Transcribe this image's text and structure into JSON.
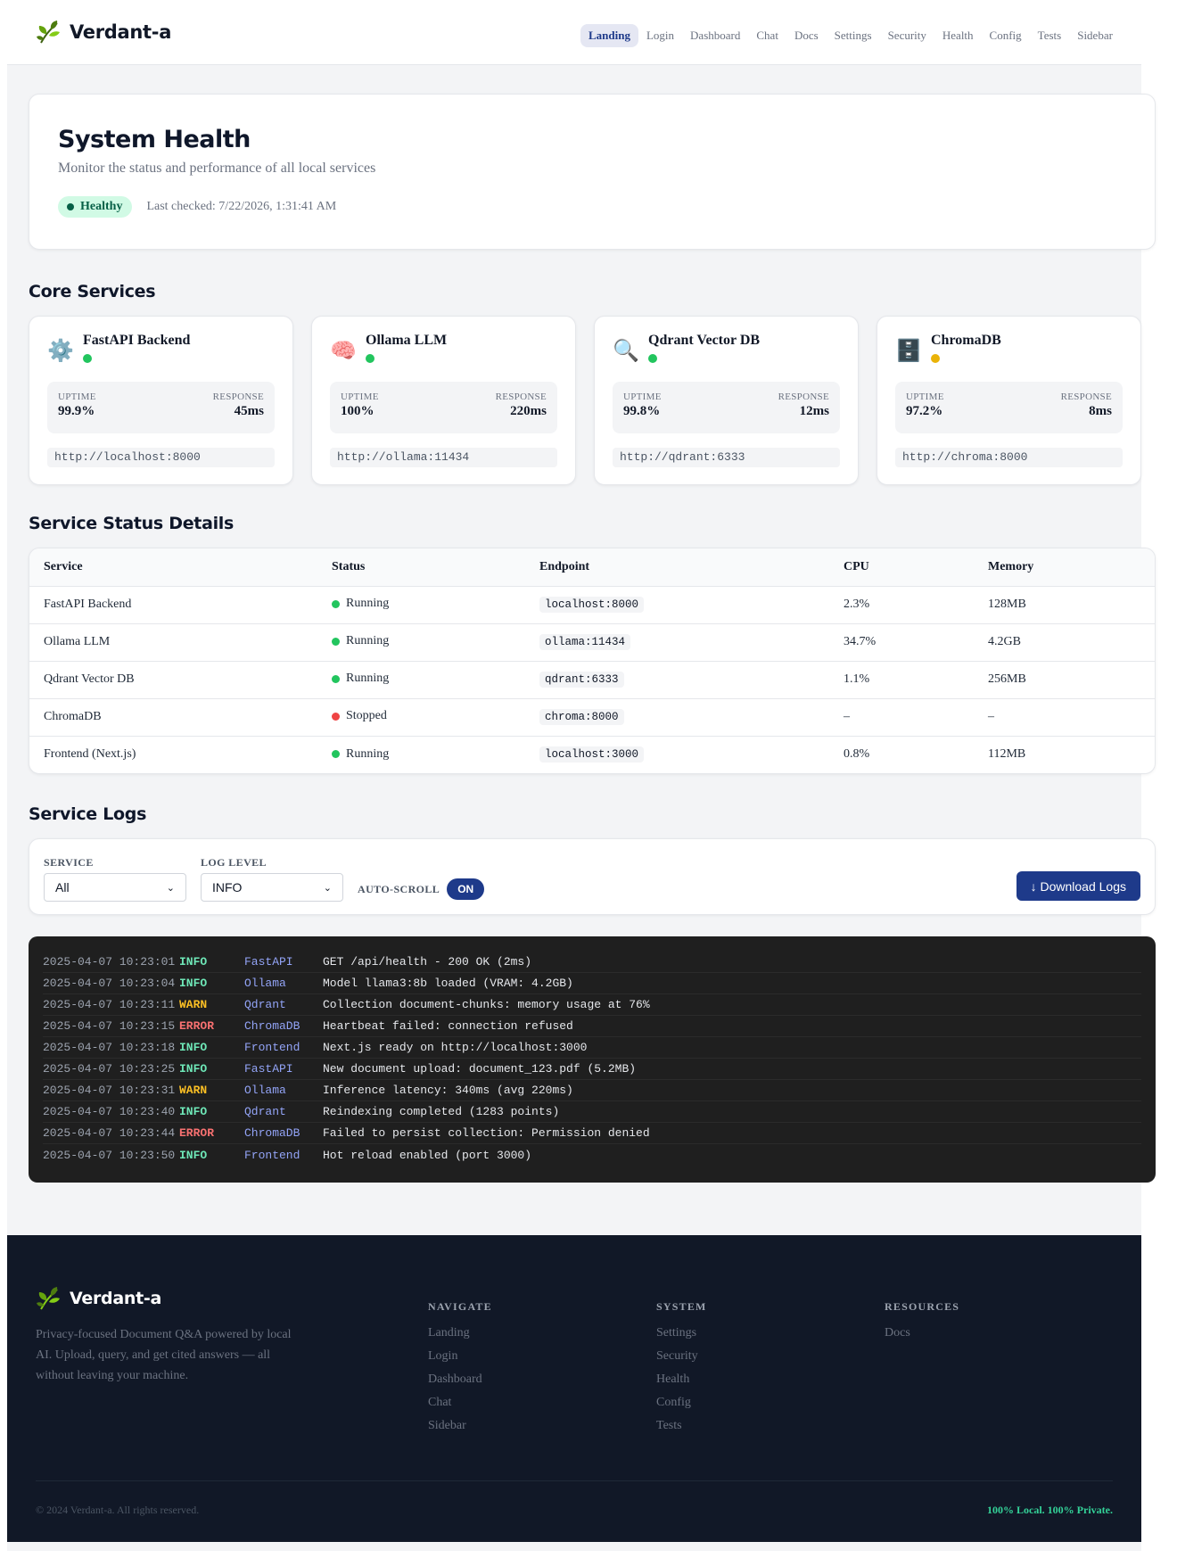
{
  "header": {
    "brand": "Verdant-a",
    "nav": [
      "Landing",
      "Login",
      "Dashboard",
      "Chat",
      "Docs",
      "Settings",
      "Security",
      "Health",
      "Config",
      "Tests",
      "Sidebar"
    ],
    "active_nav": "Landing"
  },
  "hero": {
    "title": "System Health",
    "subtitle": "Monitor the status and performance of all local services",
    "status": "Healthy",
    "last_checked": "Last checked: 7/22/2026, 1:31:41 AM"
  },
  "core_services": {
    "title": "Core Services",
    "uptime_label": "UPTIME",
    "response_label": "RESPONSE",
    "items": [
      {
        "name": "FastAPI Backend",
        "icon": "gear-icon",
        "glyph": "⚙️",
        "status_color": "#22c55e",
        "uptime": "99.9%",
        "response": "45ms",
        "url": "http://localhost:8000"
      },
      {
        "name": "Ollama LLM",
        "icon": "brain-icon",
        "glyph": "🧠",
        "status_color": "#22c55e",
        "uptime": "100%",
        "response": "220ms",
        "url": "http://ollama:11434"
      },
      {
        "name": "Qdrant Vector DB",
        "icon": "magnifier-icon",
        "glyph": "🔍",
        "status_color": "#22c55e",
        "uptime": "99.8%",
        "response": "12ms",
        "url": "http://qdrant:6333"
      },
      {
        "name": "ChromaDB",
        "icon": "file-cabinet-icon",
        "glyph": "🗄️",
        "status_color": "#eab308",
        "uptime": "97.2%",
        "response": "8ms",
        "url": "http://chroma:8000"
      }
    ]
  },
  "status_details": {
    "title": "Service Status Details",
    "columns": [
      "Service",
      "Status",
      "Endpoint",
      "CPU",
      "Memory"
    ],
    "rows": [
      {
        "service": "FastAPI Backend",
        "status": "Running",
        "status_color": "#22c55e",
        "endpoint": "localhost:8000",
        "cpu": "2.3%",
        "memory": "128MB"
      },
      {
        "service": "Ollama LLM",
        "status": "Running",
        "status_color": "#22c55e",
        "endpoint": "ollama:11434",
        "cpu": "34.7%",
        "memory": "4.2GB"
      },
      {
        "service": "Qdrant Vector DB",
        "status": "Running",
        "status_color": "#22c55e",
        "endpoint": "qdrant:6333",
        "cpu": "1.1%",
        "memory": "256MB"
      },
      {
        "service": "ChromaDB",
        "status": "Stopped",
        "status_color": "#ef4444",
        "endpoint": "chroma:8000",
        "cpu": "–",
        "memory": "–"
      },
      {
        "service": "Frontend (Next.js)",
        "status": "Running",
        "status_color": "#22c55e",
        "endpoint": "localhost:3000",
        "cpu": "0.8%",
        "memory": "112MB"
      }
    ]
  },
  "logs": {
    "title": "Service Logs",
    "service_label": "SERVICE",
    "service_value": "All",
    "level_label": "LOG LEVEL",
    "level_value": "INFO",
    "autoscroll_label": "AUTO-SCROLL",
    "autoscroll_value": "ON",
    "download_label": "↓ Download Logs",
    "level_colors": {
      "INFO": "#6ee7b7",
      "WARN": "#fbbf24",
      "ERROR": "#f87171"
    },
    "entries": [
      {
        "ts": "2025-04-07 10:23:01",
        "level": "INFO",
        "source": "FastAPI",
        "message": "GET /api/health - 200 OK (2ms)"
      },
      {
        "ts": "2025-04-07 10:23:04",
        "level": "INFO",
        "source": "Ollama",
        "message": "Model llama3:8b loaded (VRAM: 4.2GB)"
      },
      {
        "ts": "2025-04-07 10:23:11",
        "level": "WARN",
        "source": "Qdrant",
        "message": "Collection document-chunks: memory usage at 76%"
      },
      {
        "ts": "2025-04-07 10:23:15",
        "level": "ERROR",
        "source": "ChromaDB",
        "message": "Heartbeat failed: connection refused"
      },
      {
        "ts": "2025-04-07 10:23:18",
        "level": "INFO",
        "source": "Frontend",
        "message": "Next.js ready on http://localhost:3000"
      },
      {
        "ts": "2025-04-07 10:23:25",
        "level": "INFO",
        "source": "FastAPI",
        "message": "New document upload: document_123.pdf (5.2MB)"
      },
      {
        "ts": "2025-04-07 10:23:31",
        "level": "WARN",
        "source": "Ollama",
        "message": "Inference latency: 340ms (avg 220ms)"
      },
      {
        "ts": "2025-04-07 10:23:40",
        "level": "INFO",
        "source": "Qdrant",
        "message": "Reindexing completed (1283 points)"
      },
      {
        "ts": "2025-04-07 10:23:44",
        "level": "ERROR",
        "source": "ChromaDB",
        "message": "Failed to persist collection: Permission denied"
      },
      {
        "ts": "2025-04-07 10:23:50",
        "level": "INFO",
        "source": "Frontend",
        "message": "Hot reload enabled (port 3000)"
      }
    ]
  },
  "footer": {
    "brand": "Verdant-a",
    "description": "Privacy-focused Document Q&A powered by local AI. Upload, query, and get cited answers — all without leaving your machine.",
    "columns": [
      {
        "title": "NAVIGATE",
        "links": [
          "Landing",
          "Login",
          "Dashboard",
          "Chat",
          "Sidebar"
        ]
      },
      {
        "title": "SYSTEM",
        "links": [
          "Settings",
          "Security",
          "Health",
          "Config",
          "Tests"
        ]
      },
      {
        "title": "RESOURCES",
        "links": [
          "Docs"
        ]
      }
    ],
    "copyright": "© 2024 Verdant-a. All rights reserved.",
    "tagline": "100% Local. 100% Private."
  }
}
